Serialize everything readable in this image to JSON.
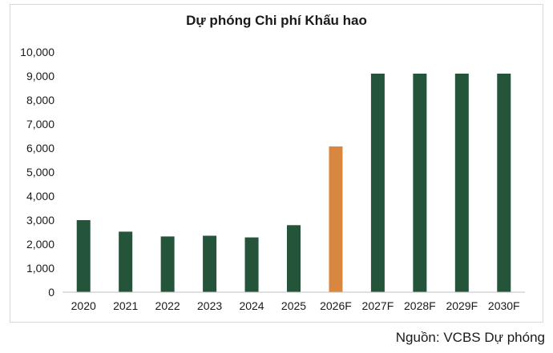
{
  "source_note": "Nguồn: VCBS Dự phóng",
  "colors": {
    "actual": "#24543a",
    "forecast_highlight": "#d9873f",
    "axis": "#bfbfbf",
    "text": "#1a1a1a"
  },
  "chart_data": {
    "type": "bar",
    "title": "Dự phóng Chi phí Khấu hao",
    "xlabel": "",
    "ylabel": "",
    "categories": [
      "2020",
      "2021",
      "2022",
      "2023",
      "2024",
      "2025",
      "2026F",
      "2027F",
      "2028F",
      "2029F",
      "2030F"
    ],
    "values": [
      3000,
      2520,
      2320,
      2350,
      2280,
      2790,
      6070,
      9100,
      9100,
      9100,
      9100
    ],
    "highlight_index": 6,
    "ylim": [
      0,
      10000
    ],
    "yticks": [
      0,
      1000,
      2000,
      3000,
      4000,
      5000,
      6000,
      7000,
      8000,
      9000,
      10000
    ],
    "ytick_labels": [
      "0",
      "1,000",
      "2,000",
      "3,000",
      "4,000",
      "5,000",
      "6,000",
      "7,000",
      "8,000",
      "9,000",
      "10,000"
    ],
    "grid": false,
    "legend": "none"
  }
}
